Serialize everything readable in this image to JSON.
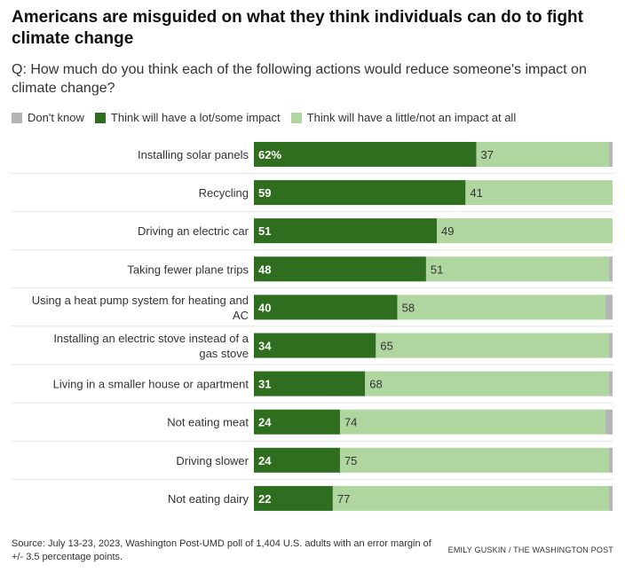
{
  "title": "Americans are misguided on what they think individuals can do to fight climate change",
  "subtitle": "Q: How much do you think each of the following actions would reduce someone's impact on climate change?",
  "legend": [
    {
      "label": "Don't know",
      "color": "#b5b5b5"
    },
    {
      "label": "Think will have a lot/some impact",
      "color": "#2f6e1e"
    },
    {
      "label": "Think will have a little/not an impact at all",
      "color": "#b0d6a0"
    }
  ],
  "chart_data": {
    "type": "bar",
    "orientation": "horizontal",
    "stacked": true,
    "categories": [
      "Installing solar panels",
      "Recycling",
      "Driving an electric car",
      "Taking fewer plane trips",
      "Using a heat pump system for heating and AC",
      "Installing an electric stove instead of a gas stove",
      "Living in a smaller house or apartment",
      "Not eating meat",
      "Driving slower",
      "Not eating dairy"
    ],
    "series": [
      {
        "name": "Think will have a lot/some impact",
        "values": [
          62,
          59,
          51,
          48,
          40,
          34,
          31,
          24,
          24,
          22
        ]
      },
      {
        "name": "Think will have a little/not an impact at all",
        "values": [
          37,
          41,
          49,
          51,
          58,
          65,
          68,
          74,
          75,
          77
        ]
      },
      {
        "name": "Don't know",
        "values": [
          1,
          0,
          0,
          1,
          2,
          1,
          1,
          2,
          1,
          1
        ]
      }
    ],
    "data_labels": {
      "impact": [
        "62%",
        "59",
        "51",
        "48",
        "40",
        "34",
        "31",
        "24",
        "24",
        "22"
      ],
      "little": [
        "37",
        "41",
        "49",
        "51",
        "58",
        "65",
        "68",
        "74",
        "75",
        "77"
      ]
    },
    "xlim": [
      0,
      100
    ],
    "grid": false,
    "legend_position": "top-left"
  },
  "footer": {
    "source": "Source: July 13-23, 2023, Washington Post-UMD poll of 1,404 U.S. adults with an error margin of +/- 3.5 percentage points.",
    "credit": "EMILY GUSKIN / THE WASHINGTON POST"
  }
}
